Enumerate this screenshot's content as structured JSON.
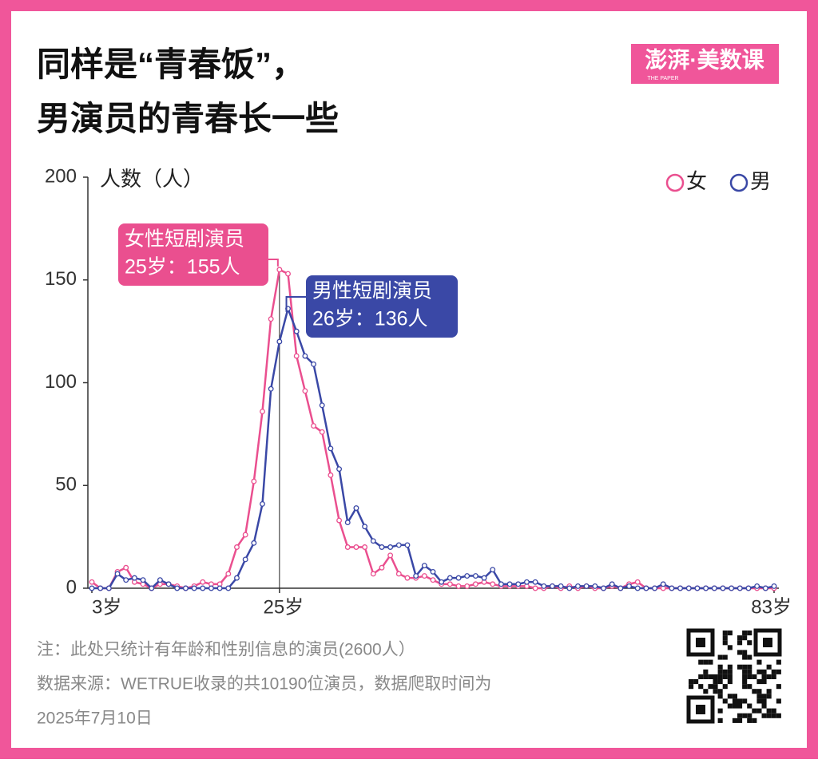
{
  "chart_data": {
    "type": "line",
    "title_lines": [
      "同样是“青春饭”，",
      "男演员的青春长一些"
    ],
    "logo": "澎湃·美数课",
    "logo_sub": "THE PAPER",
    "y_label": "人数（人）",
    "x": [
      3,
      4,
      5,
      6,
      7,
      8,
      9,
      10,
      11,
      12,
      13,
      14,
      15,
      16,
      17,
      18,
      19,
      20,
      21,
      22,
      23,
      24,
      25,
      26,
      27,
      28,
      29,
      30,
      31,
      32,
      33,
      34,
      35,
      36,
      37,
      38,
      39,
      40,
      41,
      42,
      43,
      44,
      45,
      46,
      47,
      48,
      49,
      50,
      51,
      52,
      53,
      54,
      55,
      56,
      57,
      58,
      59,
      60,
      61,
      62,
      63,
      64,
      65,
      66,
      67,
      68,
      69,
      70,
      71,
      72,
      73,
      74,
      75,
      76,
      77,
      78,
      79,
      80,
      81,
      82,
      83
    ],
    "series": [
      {
        "name": "女",
        "color": "#ea4f8f",
        "values": [
          3,
          0,
          0,
          8,
          10,
          3,
          2,
          0,
          2,
          2,
          1,
          0,
          1,
          3,
          2,
          2,
          7,
          20,
          26,
          52,
          86,
          131,
          155,
          153,
          113,
          96,
          79,
          76,
          55,
          33,
          20,
          20,
          20,
          7,
          10,
          16,
          7,
          5,
          5,
          6,
          4,
          2,
          2,
          1,
          1,
          2,
          3,
          2,
          1,
          1,
          1,
          1,
          0,
          0,
          1,
          0,
          1,
          0,
          1,
          0,
          0,
          1,
          0,
          2,
          3,
          0,
          0,
          0,
          0,
          0,
          0,
          0,
          0,
          0,
          0,
          0,
          0,
          0,
          0,
          0,
          0
        ]
      },
      {
        "name": "男",
        "color": "#3a48a6",
        "values": [
          0,
          0,
          0,
          7,
          4,
          5,
          4,
          0,
          4,
          2,
          0,
          0,
          0,
          0,
          0,
          0,
          0,
          5,
          14,
          22,
          41,
          97,
          120,
          136,
          125,
          113,
          109,
          89,
          68,
          58,
          32,
          39,
          30,
          23,
          20,
          20,
          21,
          21,
          6,
          11,
          8,
          3,
          5,
          5,
          6,
          6,
          5,
          9,
          2,
          2,
          2,
          3,
          3,
          1,
          1,
          1,
          0,
          1,
          1,
          1,
          0,
          2,
          0,
          1,
          0,
          0,
          0,
          2,
          0,
          0,
          0,
          0,
          0,
          0,
          0,
          0,
          0,
          0,
          1,
          0,
          1
        ]
      }
    ],
    "xlim": [
      3,
      83
    ],
    "xticks": [
      {
        "value": 3,
        "label": "3岁"
      },
      {
        "value": 25,
        "label": "25岁"
      },
      {
        "value": 83,
        "label": "83岁"
      }
    ],
    "ylim": [
      0,
      200
    ],
    "yticks": [
      0,
      50,
      100,
      150,
      200
    ],
    "annotations": [
      {
        "lines": [
          "女性短剧演员",
          "25岁：155人"
        ],
        "series": 0,
        "x": 25,
        "y": 155
      },
      {
        "lines": [
          "男性短剧演员",
          "26岁：136人"
        ],
        "series": 1,
        "x": 26,
        "y": 136
      }
    ],
    "notes": [
      "注：此处只统计有年龄和性别信息的演员(2600人）",
      "数据来源：WETRUE收录的共10190位演员，数据爬取时间为",
      "2025年7月10日"
    ]
  }
}
